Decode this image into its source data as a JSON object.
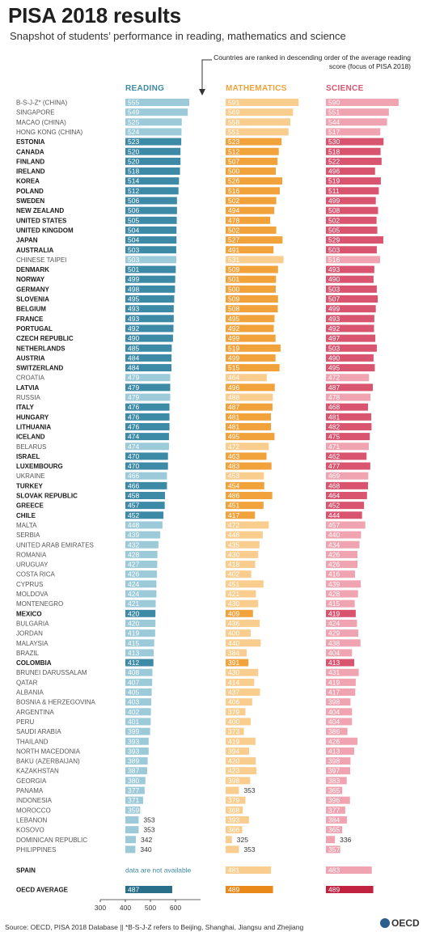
{
  "title": "PISA 2018 results",
  "subtitle": "Snapshot of students’ performance in reading, mathematics and science",
  "note": "Countries are ranked in descending order of the average reading score (focus of PISA 2018)",
  "source": "Source: OECD, PISA 2018 Database  ||  *B-S-J-Z refers to Beijing, Shanghai, Jiangsu and Zhejiang",
  "logo_text": "OECD",
  "colors": {
    "reading_strong": "#3d8aa6",
    "reading_light": "#9ccad8",
    "math_strong": "#f1a23a",
    "math_light": "#f8cd8e",
    "science_strong": "#d9546f",
    "science_light": "#f0a3b1",
    "avg_reading": "#2a6f8a",
    "avg_math": "#e8891a",
    "avg_science": "#c0223f"
  },
  "chart_data": {
    "type": "bar",
    "columns": [
      "READING",
      "MATHEMATICS",
      "SCIENCE"
    ],
    "axis_ticks": [
      300,
      400,
      500,
      600
    ],
    "xlim": [
      300,
      600
    ],
    "countries": [
      {
        "name": "B-S-J-Z* (CHINA)",
        "reading": 555,
        "math": 591,
        "science": 590,
        "oecd": false
      },
      {
        "name": "SINGAPORE",
        "reading": 549,
        "math": 569,
        "science": 551,
        "oecd": false
      },
      {
        "name": "MACAO (CHINA)",
        "reading": 525,
        "math": 558,
        "science": 544,
        "oecd": false
      },
      {
        "name": "HONG KONG (CHINA)",
        "reading": 524,
        "math": 551,
        "science": 517,
        "oecd": false
      },
      {
        "name": "ESTONIA",
        "reading": 523,
        "math": 523,
        "science": 530,
        "oecd": true
      },
      {
        "name": "CANADA",
        "reading": 520,
        "math": 512,
        "science": 518,
        "oecd": true
      },
      {
        "name": "FINLAND",
        "reading": 520,
        "math": 507,
        "science": 522,
        "oecd": true
      },
      {
        "name": "IRELAND",
        "reading": 518,
        "math": 500,
        "science": 496,
        "oecd": true
      },
      {
        "name": "KOREA",
        "reading": 514,
        "math": 526,
        "science": 519,
        "oecd": true
      },
      {
        "name": "POLAND",
        "reading": 512,
        "math": 516,
        "science": 511,
        "oecd": true
      },
      {
        "name": "SWEDEN",
        "reading": 506,
        "math": 502,
        "science": 499,
        "oecd": true
      },
      {
        "name": "NEW ZEALAND",
        "reading": 506,
        "math": 494,
        "science": 508,
        "oecd": true
      },
      {
        "name": "UNITED STATES",
        "reading": 505,
        "math": 478,
        "science": 502,
        "oecd": true
      },
      {
        "name": "UNITED KINGDOM",
        "reading": 504,
        "math": 502,
        "science": 505,
        "oecd": true
      },
      {
        "name": "JAPAN",
        "reading": 504,
        "math": 527,
        "science": 529,
        "oecd": true
      },
      {
        "name": "AUSTRALIA",
        "reading": 503,
        "math": 491,
        "science": 503,
        "oecd": true
      },
      {
        "name": "CHINESE TAIPEI",
        "reading": 503,
        "math": 531,
        "science": 516,
        "oecd": false
      },
      {
        "name": "DENMARK",
        "reading": 501,
        "math": 509,
        "science": 493,
        "oecd": true
      },
      {
        "name": "NORWAY",
        "reading": 499,
        "math": 501,
        "science": 490,
        "oecd": true
      },
      {
        "name": "GERMANY",
        "reading": 498,
        "math": 500,
        "science": 503,
        "oecd": true
      },
      {
        "name": "SLOVENIA",
        "reading": 495,
        "math": 509,
        "science": 507,
        "oecd": true
      },
      {
        "name": "BELGIUM",
        "reading": 493,
        "math": 508,
        "science": 499,
        "oecd": true
      },
      {
        "name": "FRANCE",
        "reading": 493,
        "math": 495,
        "science": 493,
        "oecd": true
      },
      {
        "name": "PORTUGAL",
        "reading": 492,
        "math": 492,
        "science": 492,
        "oecd": true
      },
      {
        "name": "CZECH REPUBLIC",
        "reading": 490,
        "math": 499,
        "science": 497,
        "oecd": true
      },
      {
        "name": "NETHERLANDS",
        "reading": 485,
        "math": 519,
        "science": 503,
        "oecd": true
      },
      {
        "name": "AUSTRIA",
        "reading": 484,
        "math": 499,
        "science": 490,
        "oecd": true
      },
      {
        "name": "SWITZERLAND",
        "reading": 484,
        "math": 515,
        "science": 495,
        "oecd": true
      },
      {
        "name": "CROATIA",
        "reading": 479,
        "math": 464,
        "science": 472,
        "oecd": false
      },
      {
        "name": "LATVIA",
        "reading": 479,
        "math": 496,
        "science": 487,
        "oecd": true
      },
      {
        "name": "RUSSIA",
        "reading": 479,
        "math": 488,
        "science": 478,
        "oecd": false
      },
      {
        "name": "ITALY",
        "reading": 476,
        "math": 487,
        "science": 468,
        "oecd": true
      },
      {
        "name": "HUNGARY",
        "reading": 476,
        "math": 481,
        "science": 481,
        "oecd": true
      },
      {
        "name": "LITHUANIA",
        "reading": 476,
        "math": 481,
        "science": 482,
        "oecd": true
      },
      {
        "name": "ICELAND",
        "reading": 474,
        "math": 495,
        "science": 475,
        "oecd": true
      },
      {
        "name": "BELARUS",
        "reading": 474,
        "math": 472,
        "science": 471,
        "oecd": false
      },
      {
        "name": "ISRAEL",
        "reading": 470,
        "math": 463,
        "science": 462,
        "oecd": true
      },
      {
        "name": "LUXEMBOURG",
        "reading": 470,
        "math": 483,
        "science": 477,
        "oecd": true
      },
      {
        "name": "UKRAINE",
        "reading": 466,
        "math": 453,
        "science": 469,
        "oecd": false
      },
      {
        "name": "TURKEY",
        "reading": 466,
        "math": 454,
        "science": 468,
        "oecd": true
      },
      {
        "name": "SLOVAK REPUBLIC",
        "reading": 458,
        "math": 486,
        "science": 464,
        "oecd": true
      },
      {
        "name": "GREECE",
        "reading": 457,
        "math": 451,
        "science": 452,
        "oecd": true
      },
      {
        "name": "CHILE",
        "reading": 452,
        "math": 417,
        "science": 444,
        "oecd": true
      },
      {
        "name": "MALTA",
        "reading": 448,
        "math": 472,
        "science": 457,
        "oecd": false
      },
      {
        "name": "SERBIA",
        "reading": 439,
        "math": 448,
        "science": 440,
        "oecd": false
      },
      {
        "name": "UNITED ARAB EMIRATES",
        "reading": 432,
        "math": 435,
        "science": 434,
        "oecd": false
      },
      {
        "name": "ROMANIA",
        "reading": 428,
        "math": 430,
        "science": 426,
        "oecd": false
      },
      {
        "name": "URUGUAY",
        "reading": 427,
        "math": 418,
        "science": 426,
        "oecd": false
      },
      {
        "name": "COSTA RICA",
        "reading": 426,
        "math": 402,
        "science": 416,
        "oecd": false
      },
      {
        "name": "CYPRUS",
        "reading": 424,
        "math": 451,
        "science": 439,
        "oecd": false
      },
      {
        "name": "MOLDOVA",
        "reading": 424,
        "math": 421,
        "science": 428,
        "oecd": false
      },
      {
        "name": "MONTENEGRO",
        "reading": 421,
        "math": 430,
        "science": 415,
        "oecd": false
      },
      {
        "name": "MEXICO",
        "reading": 420,
        "math": 409,
        "science": 419,
        "oecd": true
      },
      {
        "name": "BULGARIA",
        "reading": 420,
        "math": 436,
        "science": 424,
        "oecd": false
      },
      {
        "name": "JORDAN",
        "reading": 419,
        "math": 400,
        "science": 429,
        "oecd": false
      },
      {
        "name": "MALAYSIA",
        "reading": 415,
        "math": 440,
        "science": 438,
        "oecd": false
      },
      {
        "name": "BRAZIL",
        "reading": 413,
        "math": 384,
        "science": 404,
        "oecd": false
      },
      {
        "name": "COLOMBIA",
        "reading": 412,
        "math": 391,
        "science": 413,
        "oecd": true
      },
      {
        "name": "BRUNEI DARUSSALAM",
        "reading": 408,
        "math": 430,
        "science": 431,
        "oecd": false
      },
      {
        "name": "QATAR",
        "reading": 407,
        "math": 414,
        "science": 419,
        "oecd": false
      },
      {
        "name": "ALBANIA",
        "reading": 405,
        "math": 437,
        "science": 417,
        "oecd": false
      },
      {
        "name": "BOSNIA & HERZEGOVINA",
        "reading": 403,
        "math": 406,
        "science": 398,
        "oecd": false
      },
      {
        "name": "ARGENTINA",
        "reading": 402,
        "math": 379,
        "science": 404,
        "oecd": false
      },
      {
        "name": "PERU",
        "reading": 401,
        "math": 400,
        "science": 404,
        "oecd": false
      },
      {
        "name": "SAUDI ARABIA",
        "reading": 399,
        "math": 373,
        "science": 386,
        "oecd": false
      },
      {
        "name": "THAILAND",
        "reading": 393,
        "math": 419,
        "science": 426,
        "oecd": false
      },
      {
        "name": "NORTH MACEDONIA",
        "reading": 393,
        "math": 394,
        "science": 413,
        "oecd": false
      },
      {
        "name": "BAKU (AZERBAIJAN)",
        "reading": 389,
        "math": 420,
        "science": 398,
        "oecd": false
      },
      {
        "name": "KAZAKHSTAN",
        "reading": 387,
        "math": 423,
        "science": 397,
        "oecd": false
      },
      {
        "name": "GEORGIA",
        "reading": 380,
        "math": 398,
        "science": 383,
        "oecd": false
      },
      {
        "name": "PANAMA",
        "reading": 377,
        "math": 353,
        "science": 365,
        "oecd": false
      },
      {
        "name": "INDONESIA",
        "reading": 371,
        "math": 379,
        "science": 396,
        "oecd": false
      },
      {
        "name": "MOROCCO",
        "reading": 359,
        "math": 368,
        "science": 377,
        "oecd": false
      },
      {
        "name": "LEBANON",
        "reading": 353,
        "math": 393,
        "science": 384,
        "oecd": false
      },
      {
        "name": "KOSOVO",
        "reading": 353,
        "math": 366,
        "science": 365,
        "oecd": false
      },
      {
        "name": "DOMINICAN REPUBLIC",
        "reading": 342,
        "math": 325,
        "science": 336,
        "oecd": false
      },
      {
        "name": "PHILIPPINES",
        "reading": 340,
        "math": 353,
        "science": 357,
        "oecd": false
      }
    ],
    "spain": {
      "name": "SPAIN",
      "reading_text": "data are not available",
      "math": 481,
      "science": 483
    },
    "average": {
      "name": "OECD AVERAGE",
      "reading": 487,
      "math": 489,
      "science": 489
    }
  }
}
